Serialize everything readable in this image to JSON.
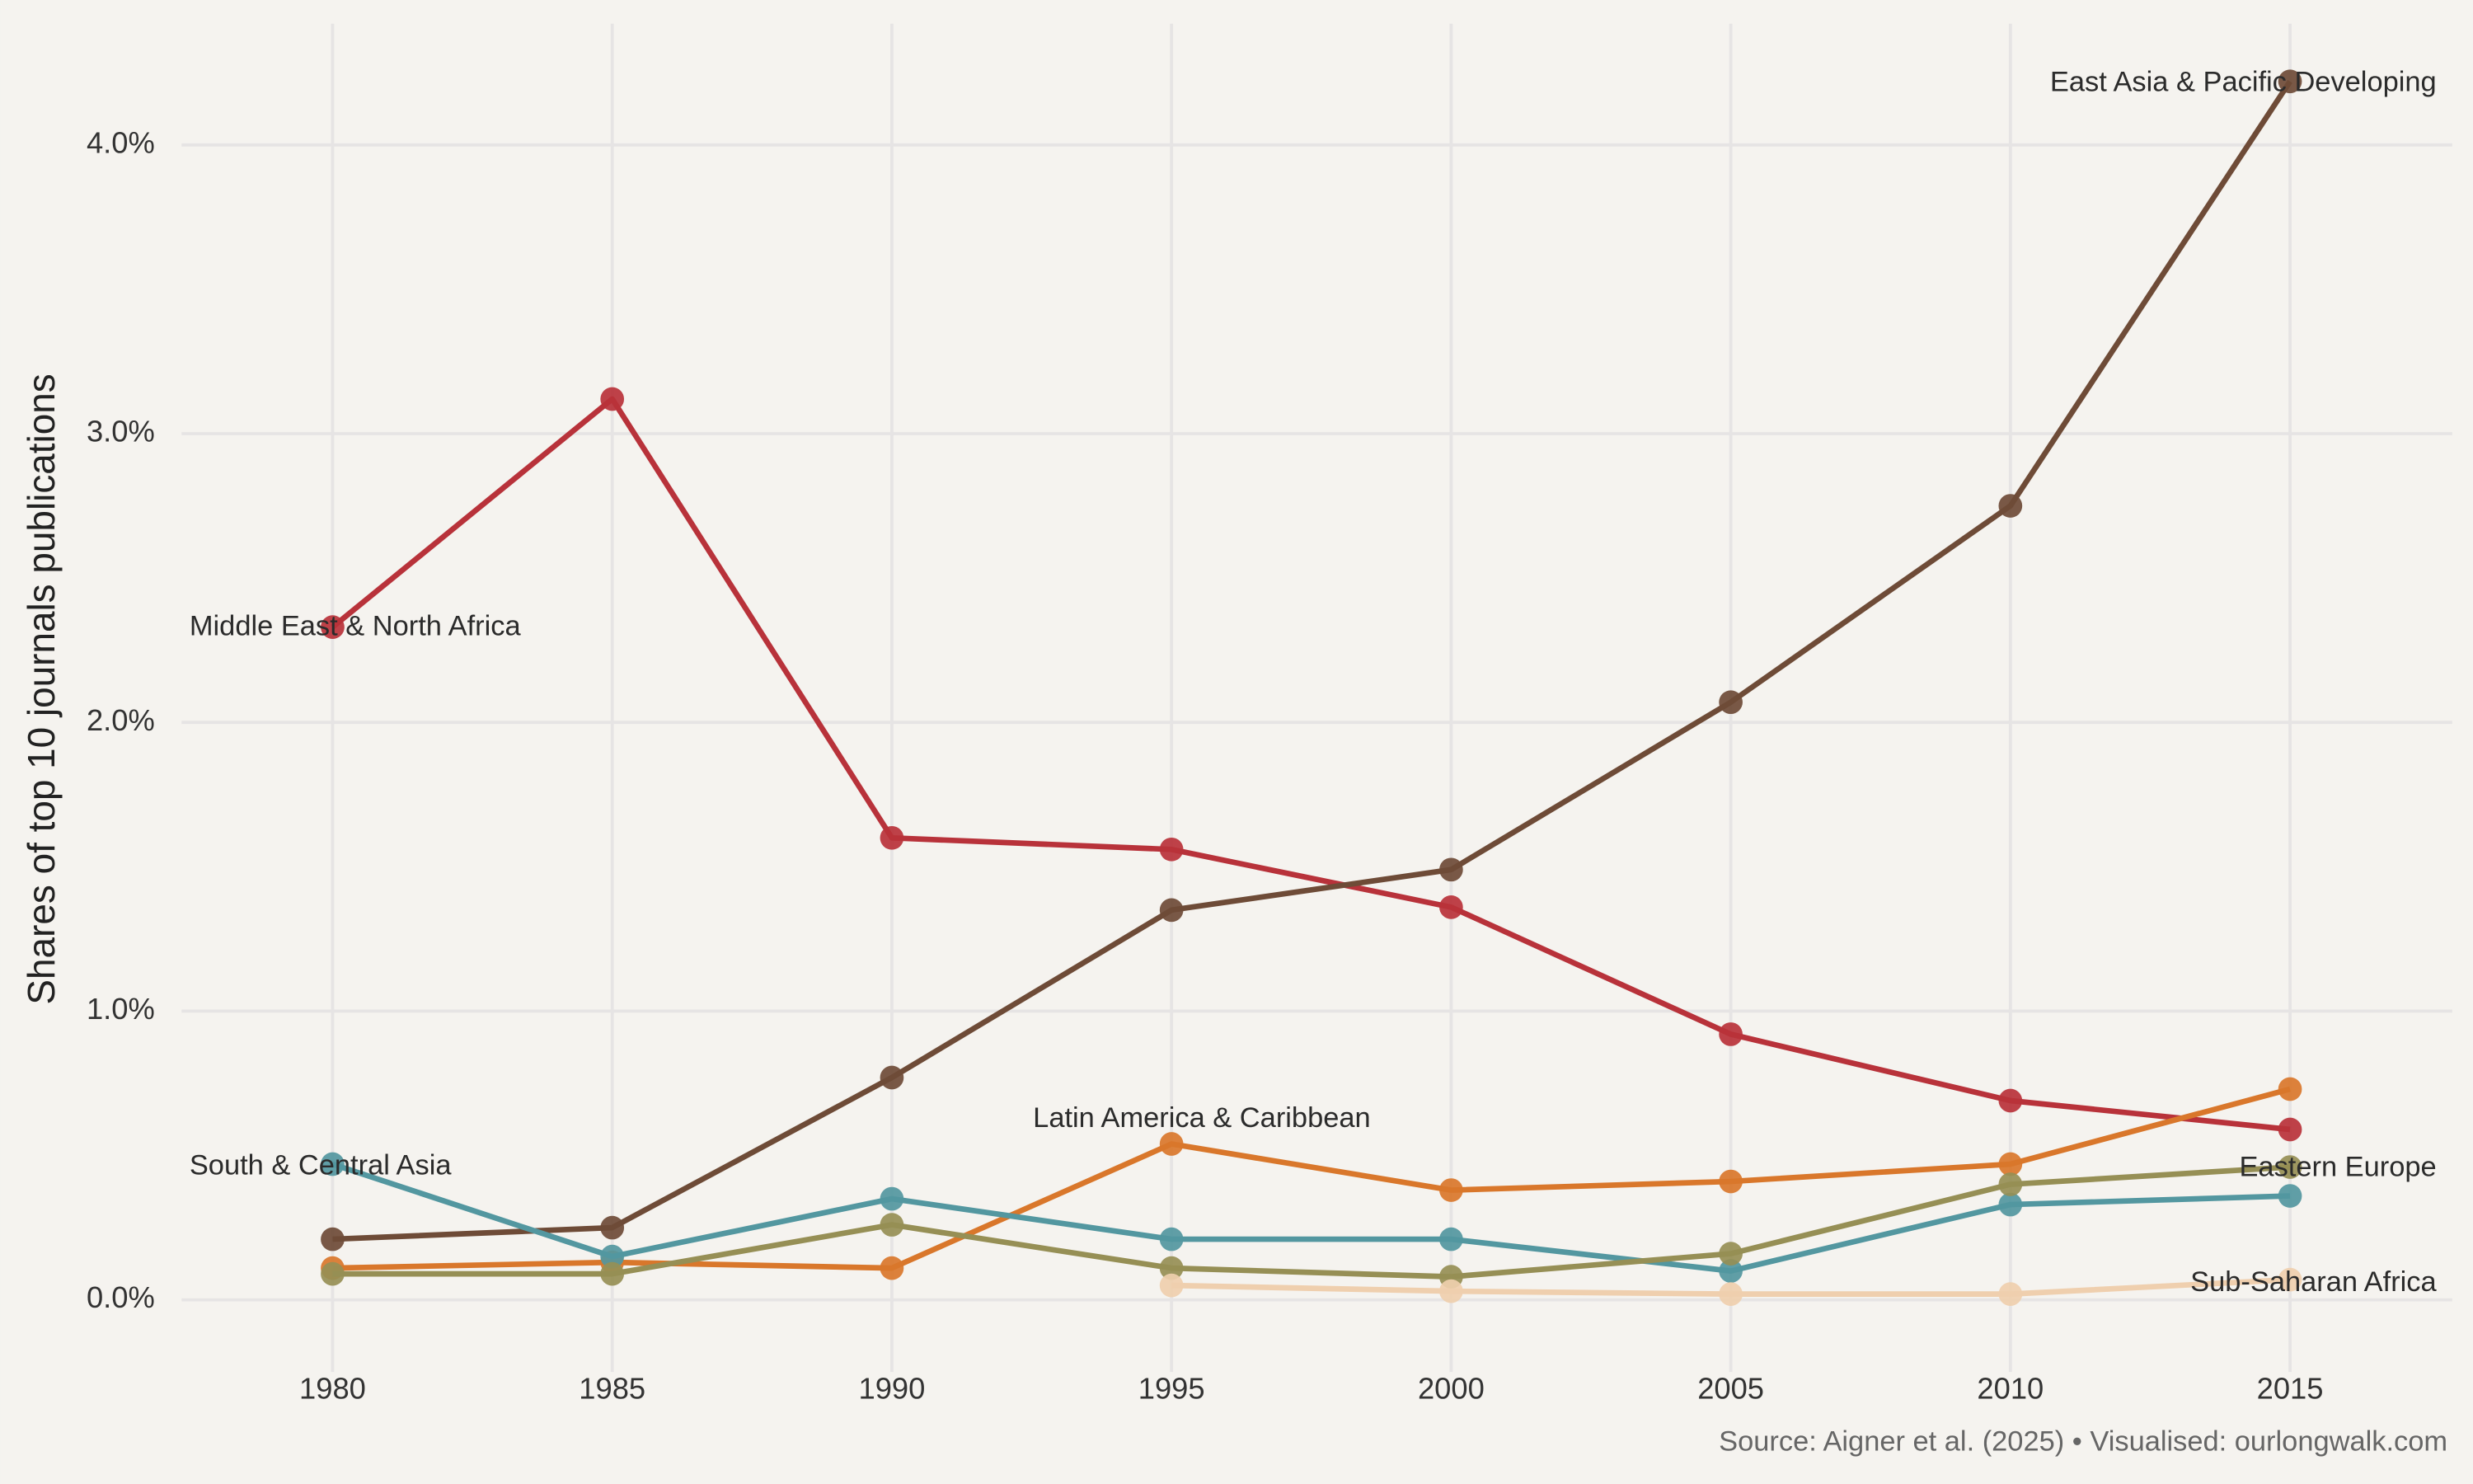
{
  "chart_data": {
    "type": "line",
    "y_label": "Shares of top 10 journals publications",
    "source": "Source: Aigner et al. (2025) • Visualised: ourlongwalk.com",
    "x": [
      1980,
      1985,
      1990,
      1995,
      2000,
      2005,
      2010,
      2015
    ],
    "xlim": [
      1977.3,
      2017.9
    ],
    "xticks": [
      1980,
      1985,
      1990,
      1995,
      2000,
      2005,
      2010,
      2015
    ],
    "ylim": [
      -0.25,
      4.42
    ],
    "yticks": [
      {
        "value": 0,
        "label": "0.0%"
      },
      {
        "value": 1,
        "label": "1.0%"
      },
      {
        "value": 2,
        "label": "2.0%"
      },
      {
        "value": 3,
        "label": "3.0%"
      },
      {
        "value": 4,
        "label": "4.0%"
      }
    ],
    "grid": true,
    "series": [
      {
        "name": "Middle East & North Africa",
        "color": "#b8323a",
        "values": [
          2.33,
          3.12,
          1.6,
          1.56,
          1.36,
          0.92,
          0.69,
          0.59
        ]
      },
      {
        "name": "East Asia & Pacific Developing",
        "color": "#6e4b37",
        "values": [
          0.21,
          0.25,
          0.77,
          1.35,
          1.49,
          2.07,
          2.75,
          4.22
        ]
      },
      {
        "name": "Latin America & Caribbean",
        "color": "#d9772b",
        "values": [
          0.11,
          0.13,
          0.11,
          0.54,
          0.38,
          0.41,
          0.47,
          0.73
        ]
      },
      {
        "name": "South & Central Asia",
        "color": "#5397a0",
        "values": [
          0.47,
          0.15,
          0.35,
          0.21,
          0.21,
          0.1,
          0.33,
          0.36
        ]
      },
      {
        "name": "Eastern Europe",
        "color": "#968f55",
        "values": [
          0.09,
          0.09,
          0.26,
          0.11,
          0.08,
          0.16,
          0.4,
          0.46
        ]
      },
      {
        "name": "Sub-Saharan Africa",
        "color": "#efcfae",
        "values": [
          null,
          null,
          null,
          0.05,
          0.03,
          0.02,
          0.02,
          0.07
        ]
      }
    ]
  }
}
